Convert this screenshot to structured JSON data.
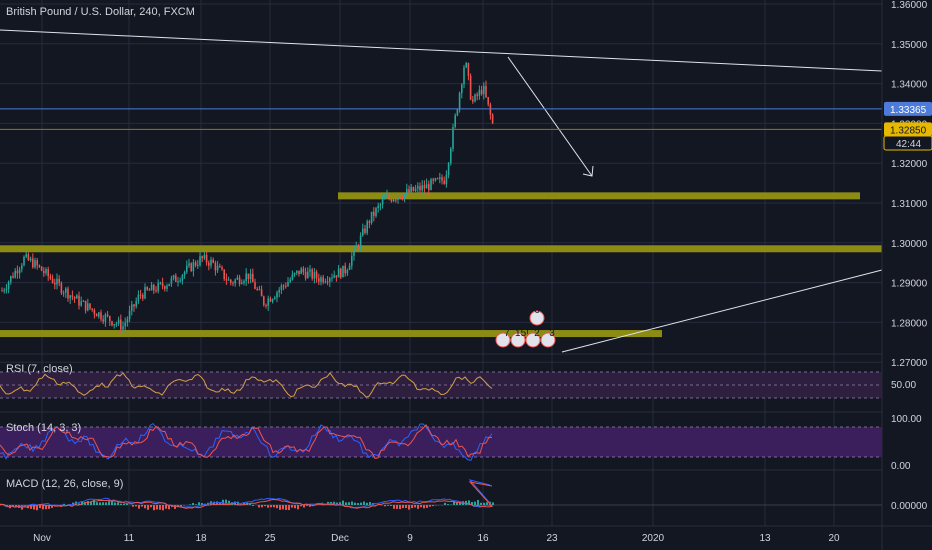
{
  "header": {
    "title": "British Pound / U.S. Dollar, 240, FXCM"
  },
  "price_axis": {
    "ticks": [
      "1.36000",
      "1.35000",
      "1.34000",
      "1.33000",
      "1.32000",
      "1.31000",
      "1.30000",
      "1.29000",
      "1.28000",
      "1.27000"
    ],
    "current_price_label": "1.33365",
    "current_price_color": "#4c7bd9",
    "close_price_label": "1.32850",
    "close_price_color": "#e6b800",
    "countdown_label": "42:44"
  },
  "time_axis": {
    "ticks": [
      "Nov",
      "11",
      "18",
      "25",
      "Dec",
      "9",
      "16",
      "23",
      "2020",
      "13",
      "20"
    ]
  },
  "event_badges": {
    "top": "6",
    "row": [
      "7",
      "15!",
      "2",
      "3"
    ]
  },
  "panes": {
    "rsi": {
      "label": "RSI (7, close)",
      "ticks": [
        "50.00"
      ]
    },
    "stoch": {
      "label": "Stoch (14, 3, 3)",
      "ticks": [
        "100.00",
        "0.00"
      ]
    },
    "macd": {
      "label": "MACD (12, 26, close, 9)",
      "ticks": [
        "0.00000"
      ]
    }
  },
  "colors": {
    "background": "#131722",
    "up": "#26a69a",
    "down": "#ef5350",
    "support_zone": "#8c8c14",
    "trendline": "#e0e3eb",
    "grid": "#262b3e"
  },
  "chart_data": [
    {
      "type": "candlestick",
      "title": "British Pound / U.S. Dollar, 240, FXCM",
      "x": [
        "Nov",
        "11",
        "18",
        "25",
        "Dec",
        "9",
        "16",
        "23",
        "2020",
        "13",
        "20"
      ],
      "ylim": [
        1.2685,
        1.3625
      ],
      "close_path": [
        [
          "Oct 29",
          1.288
        ],
        [
          "Oct 31",
          1.296
        ],
        [
          "Nov 1",
          1.295
        ],
        [
          "Nov 4",
          1.289
        ],
        [
          "Nov 6",
          1.285
        ],
        [
          "Nov 8",
          1.282
        ],
        [
          "Nov 11",
          1.279
        ],
        [
          "Nov 12",
          1.287
        ],
        [
          "Nov 14",
          1.289
        ],
        [
          "Nov 15",
          1.291
        ],
        [
          "Nov 18",
          1.296
        ],
        [
          "Nov 19",
          1.295
        ],
        [
          "Nov 21",
          1.29
        ],
        [
          "Nov 22",
          1.292
        ],
        [
          "Nov 25",
          1.285
        ],
        [
          "Nov 26",
          1.288
        ],
        [
          "Nov 28",
          1.293
        ],
        [
          "Nov 30",
          1.291
        ],
        [
          "Dec 2",
          1.293
        ],
        [
          "Dec 4",
          1.306
        ],
        [
          "Dec 6",
          1.311
        ],
        [
          "Dec 8",
          1.312
        ],
        [
          "Dec 10",
          1.314
        ],
        [
          "Dec 12",
          1.316
        ],
        [
          "Dec 13",
          1.346
        ],
        [
          "Dec 14",
          1.335
        ],
        [
          "Dec 16",
          1.339
        ],
        [
          "Dec 17",
          1.3285
        ]
      ],
      "horizontal_levels": [
        1.3118,
        1.2985,
        1.2772
      ],
      "current_price": 1.33365,
      "close_price": 1.3285
    },
    {
      "type": "line",
      "title": "RSI (7, close)",
      "ylim": [
        0,
        100
      ],
      "levels": [
        70,
        50,
        30
      ]
    },
    {
      "type": "line",
      "title": "Stoch (14, 3, 3)",
      "ylim": [
        0,
        100
      ],
      "levels": [
        80,
        20
      ]
    },
    {
      "type": "bar",
      "title": "MACD (12, 26, close, 9)",
      "levels": [
        0
      ]
    }
  ]
}
